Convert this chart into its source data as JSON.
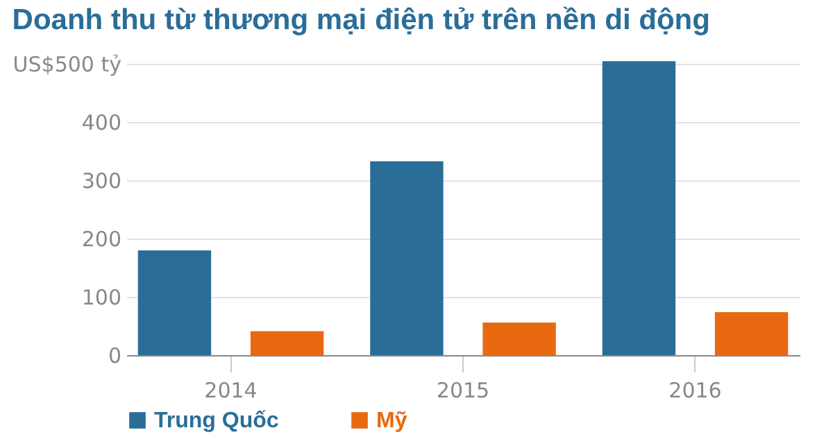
{
  "chart_data": {
    "type": "bar",
    "title": "Doanh thu từ thương mại điện tử trên nền di động",
    "categories": [
      "2014",
      "2015",
      "2016"
    ],
    "series": [
      {
        "name": "Trung Quốc",
        "color": "#2a6e98",
        "values": [
          180,
          333,
          505
        ]
      },
      {
        "name": "Mỹ",
        "color": "#e8690f",
        "values": [
          41,
          56,
          74
        ]
      }
    ],
    "ylim": [
      0,
      510
    ],
    "yticks": [
      0,
      100,
      200,
      300,
      400,
      {
        "value": 500,
        "label": "US$500 tỷ"
      }
    ],
    "grid": "y",
    "legend": "bottom"
  }
}
